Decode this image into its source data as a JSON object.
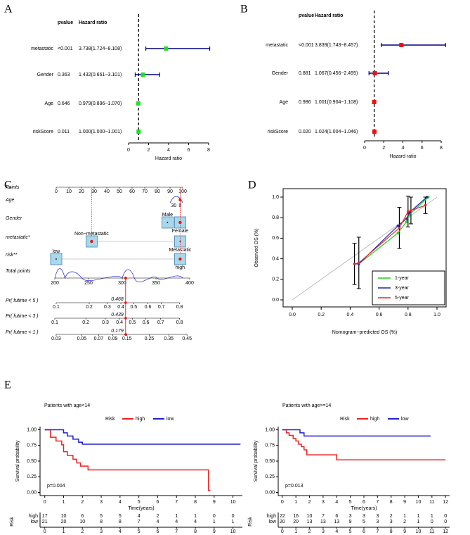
{
  "panel_labels": [
    "A",
    "B",
    "C",
    "D",
    "E"
  ],
  "chart_data": [
    {
      "type": "forest",
      "header_pvalue": "pvalue",
      "header_hr": "Hazard ratio",
      "xlabel": "Hazard ratio",
      "xlim": [
        0,
        8
      ],
      "xticks": [
        0,
        2,
        4,
        6,
        8
      ],
      "color": "#22dd22",
      "line_color": "#000080",
      "reference": 1,
      "rows": [
        {
          "name": "metastatic",
          "pvalue": "<0.001",
          "label": "3.738(1.724−8.108)",
          "hr": 3.738,
          "lo": 1.724,
          "hi": 8.108
        },
        {
          "name": "Gender",
          "pvalue": "0.363",
          "label": "1.432(0.661−3.101)",
          "hr": 1.432,
          "lo": 0.661,
          "hi": 3.101
        },
        {
          "name": "Age",
          "pvalue": "0.646",
          "label": "0.979(0.896−1.070)",
          "hr": 0.979,
          "lo": 0.896,
          "hi": 1.07
        },
        {
          "name": "riskScore",
          "pvalue": "0.011",
          "label": "1.000(1.000−1.001)",
          "hr": 1.0,
          "lo": 1.0,
          "hi": 1.001
        }
      ]
    },
    {
      "type": "forest",
      "header_pvalue": "pvalue",
      "header_hr": "Hazard ratio",
      "xlabel": "Hazard ratio",
      "xlim": [
        0,
        8
      ],
      "xticks": [
        0,
        2,
        4,
        6,
        8
      ],
      "color": "#ee1111",
      "line_color": "#000080",
      "reference": 1,
      "rows": [
        {
          "name": "metastatic",
          "pvalue": "<0.001",
          "label": "3.839(1.743−8.457)",
          "hr": 3.839,
          "lo": 1.743,
          "hi": 8.457
        },
        {
          "name": "Gender",
          "pvalue": "0.881",
          "label": "1.067(0.456−2.495)",
          "hr": 1.067,
          "lo": 0.456,
          "hi": 2.495
        },
        {
          "name": "Age",
          "pvalue": "0.986",
          "label": "1.001(0.904−1.108)",
          "hr": 1.001,
          "lo": 0.904,
          "hi": 1.108
        },
        {
          "name": "riskScore",
          "pvalue": "0.020",
          "label": "1.024(1.004−1.046)",
          "hr": 1.024,
          "lo": 1.004,
          "hi": 1.046
        }
      ]
    },
    {
      "type": "calibration",
      "xlabel": "Nomogram−predicted OS (%)",
      "ylabel": "Observed OS (%)",
      "xlim": [
        0,
        1
      ],
      "ylim": [
        0,
        1
      ],
      "xticks": [
        {
          "value": 0,
          "label": "0.0"
        },
        0.2,
        0.4,
        0.6,
        0.8,
        {
          "value": 1,
          "label": "1.0"
        }
      ],
      "yticks": [
        {
          "value": 0,
          "label": "0.0"
        },
        0.2,
        0.4,
        0.6,
        0.8,
        {
          "value": 1,
          "label": "1.0"
        }
      ],
      "legend": "lower right",
      "series": [
        {
          "name": "1-year",
          "color": "#22cc22",
          "x": [
            0.43,
            0.46,
            0.73,
            0.79,
            0.81,
            0.94
          ],
          "values": [
            0.35,
            0.35,
            0.65,
            0.76,
            0.83,
            1.0
          ]
        },
        {
          "name": "3-year",
          "color": "#2222aa",
          "x": [
            0.43,
            0.46,
            0.73,
            0.79,
            0.81,
            0.93
          ],
          "values": [
            0.35,
            0.35,
            0.72,
            0.79,
            0.85,
            1.0
          ]
        },
        {
          "name": "5-year",
          "color": "#ee2222",
          "x": [
            0.43,
            0.46,
            0.74,
            0.8,
            0.82,
            0.92
          ],
          "values": [
            0.35,
            0.36,
            0.7,
            0.86,
            0.87,
            0.92
          ],
          "errors": [
            0.2,
            0.25,
            0.2,
            0.15,
            0.13,
            0.08
          ],
          "error_color": "#000000"
        }
      ]
    },
    {
      "type": "km",
      "title": "Patients with age<14",
      "legend_title": "Risk",
      "xlabel": "Time(years)",
      "ylabel": "Survival probability",
      "pvalue": "p=0.004",
      "xlim": [
        -0.25,
        10.5
      ],
      "ylim": [
        -0.05,
        1.05
      ],
      "xticks": [
        0,
        1,
        2,
        3,
        4,
        5,
        6,
        7,
        8,
        9,
        10
      ],
      "yticks": [
        {
          "value": 0,
          "label": "0.00"
        },
        {
          "value": 0.25,
          "label": "0.25"
        },
        {
          "value": 0.5,
          "label": "0.50"
        },
        {
          "value": 0.75,
          "label": "0.75"
        },
        {
          "value": 1,
          "label": "1.00"
        }
      ],
      "series": [
        {
          "name": "high",
          "color": "#ee2222",
          "x": [
            0,
            0.3,
            0.6,
            0.9,
            1.0,
            1.2,
            1.5,
            1.7,
            1.9,
            2.3,
            8.7,
            8.8
          ],
          "values": [
            1,
            0.88,
            0.82,
            0.76,
            0.65,
            0.59,
            0.53,
            0.47,
            0.42,
            0.36,
            0.03,
            0.03
          ]
        },
        {
          "name": "low",
          "color": "#2222cc",
          "x": [
            0,
            1.0,
            1.2,
            1.5,
            1.8,
            2.0,
            10.4
          ],
          "values": [
            1,
            0.95,
            0.9,
            0.85,
            0.8,
            0.77,
            0.77
          ]
        }
      ],
      "risk_table": {
        "title": "Risk",
        "rows": [
          {
            "name": "high",
            "color": "#ee2222",
            "values": [
              17,
              10,
              6,
              5,
              5,
              4,
              2,
              1,
              1,
              0,
              0
            ]
          },
          {
            "name": "low",
            "color": "#2222cc",
            "values": [
              21,
              20,
              10,
              8,
              8,
              7,
              4,
              4,
              4,
              1,
              1
            ]
          }
        ]
      }
    },
    {
      "type": "km",
      "title": "Patients with age>=14",
      "legend_title": "Risk",
      "xlabel": "Time(years)",
      "ylabel": "Survival probability",
      "pvalue": "p=0.013",
      "xlim": [
        -0.3,
        12.3
      ],
      "ylim": [
        -0.05,
        1.05
      ],
      "xticks": [
        0,
        1,
        2,
        3,
        4,
        5,
        6,
        7,
        8,
        9,
        10,
        11,
        12
      ],
      "yticks": [
        {
          "value": 0,
          "label": "0.00"
        },
        {
          "value": 0.25,
          "label": "0.25"
        },
        {
          "value": 0.5,
          "label": "0.50"
        },
        {
          "value": 0.75,
          "label": "0.75"
        },
        {
          "value": 1,
          "label": "1.00"
        }
      ],
      "series": [
        {
          "name": "high",
          "color": "#ee2222",
          "x": [
            0,
            0.3,
            0.5,
            0.8,
            1.0,
            1.2,
            1.4,
            1.6,
            1.8,
            4.0,
            12
          ],
          "values": [
            1,
            0.95,
            0.91,
            0.86,
            0.82,
            0.77,
            0.73,
            0.68,
            0.6,
            0.52,
            0.52
          ]
        },
        {
          "name": "low",
          "color": "#2222cc",
          "x": [
            0,
            1.3,
            1.6,
            10.9
          ],
          "values": [
            1,
            0.95,
            0.9,
            0.9
          ]
        }
      ],
      "risk_table": {
        "title": "Risk",
        "rows": [
          {
            "name": "high",
            "color": "#ee2222",
            "values": [
              22,
              16,
              10,
              7,
              6,
              3,
              3,
              3,
              2,
              1,
              1,
              1,
              0
            ]
          },
          {
            "name": "low",
            "color": "#2222cc",
            "values": [
              20,
              20,
              13,
              13,
              13,
              9,
              5,
              3,
              3,
              2,
              1,
              0,
              0
            ]
          }
        ]
      }
    }
  ],
  "nomogram": {
    "points_label": "Points",
    "points_ticks": [
      0,
      10,
      20,
      30,
      40,
      50,
      60,
      70,
      80,
      90,
      100
    ],
    "variables": [
      {
        "name": "Age",
        "levels": [
          {
            "label": "30",
            "points": 93
          },
          {
            "label": "0",
            "points": 98
          }
        ]
      },
      {
        "name": "Gender",
        "levels": [
          {
            "label": "Male",
            "points": 88
          },
          {
            "label": "Female",
            "points": 98
          }
        ],
        "selected": 1
      },
      {
        "name": "metastatic*",
        "levels": [
          {
            "label": "Non−metastatic",
            "points": 28
          },
          {
            "label": "Metastatic",
            "points": 98
          }
        ],
        "selected": 0
      },
      {
        "name": "risk**",
        "levels": [
          {
            "label": "low",
            "points": 0
          },
          {
            "label": "high",
            "points": 98
          }
        ],
        "selected": 1
      }
    ],
    "total_label": "Total points",
    "total_ticks": [
      200,
      250,
      300,
      350,
      400
    ],
    "total": 305,
    "probabilities": [
      {
        "label": "Pr( futime < 5 )",
        "ticks": [
          0.1,
          0.2,
          0.3,
          0.4,
          0.5,
          0.6,
          0.7,
          0.8
        ],
        "tick_points": [
          202,
          251,
          278,
          298,
          317,
          338,
          358,
          385
        ],
        "value": 0.468
      },
      {
        "label": "Pr( futime < 3 )",
        "ticks": [
          0.1,
          0.2,
          0.3,
          0.4,
          0.5,
          0.6,
          0.7,
          0.8
        ],
        "tick_points": [
          200,
          246,
          275,
          296,
          315,
          335,
          357,
          385
        ],
        "value": 0.439
      },
      {
        "label": "Pr( futime < 1 )",
        "ticks": [
          0.03,
          0.05,
          0.07,
          0.09,
          0.15,
          0.25,
          0.35,
          0.45
        ],
        "tick_points": [
          202,
          240,
          265,
          286,
          307,
          340,
          369,
          396
        ],
        "value": 0.179
      }
    ]
  }
}
